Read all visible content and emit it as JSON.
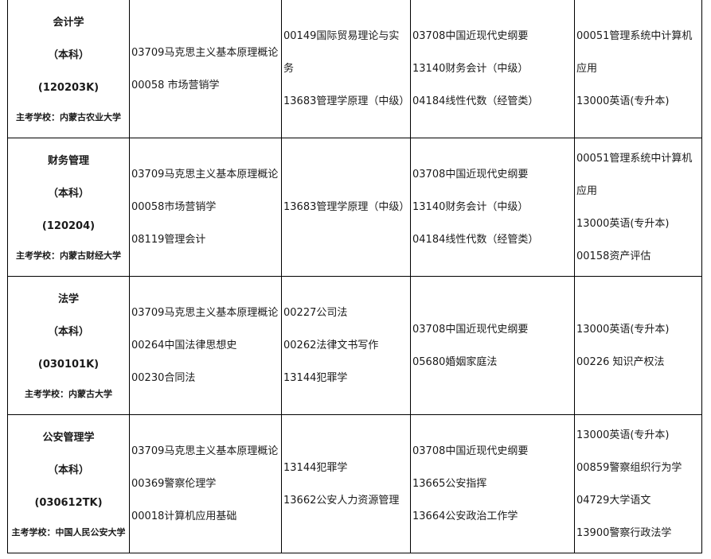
{
  "rows": [
    {
      "major": {
        "name": "会计学",
        "level": "（本科）",
        "code": "(120203K)",
        "school": "主考学校：内蒙古农业大学"
      },
      "col2": [
        "03709马克思主义基本原理概论",
        "00058 市场营销学"
      ],
      "col3": [
        "00149国际贸易理论与实务",
        "13683管理学原理（中级）"
      ],
      "col4": [
        "03708中国近现代史纲要",
        "13140财务会计（中级）",
        "04184线性代数（经管类）"
      ],
      "col5": [
        "00051管理系统中计算机应用",
        "13000英语(专升本)"
      ]
    },
    {
      "major": {
        "name": "财务管理",
        "level": "（本科）",
        "code": "(120204)",
        "school": "主考学校：内蒙古财经大学"
      },
      "col2": [
        "03709马克思主义基本原理概论",
        "00058市场营销学",
        "08119管理会计"
      ],
      "col3": [
        "13683管理学原理（中级）"
      ],
      "col4": [
        "03708中国近现代史纲要",
        "13140财务会计（中级）",
        "04184线性代数（经管类）"
      ],
      "col5": [
        "00051管理系统中计算机应用",
        "13000英语(专升本)",
        "00158资产评估"
      ]
    },
    {
      "major": {
        "name": "法学",
        "level": "（本科）",
        "code": "(030101K)",
        "school": "主考学校：内蒙古大学"
      },
      "col2": [
        "03709马克思主义基本原理概论",
        "00264中国法律思想史",
        "00230合同法"
      ],
      "col3": [
        "00227公司法",
        "00262法律文书写作",
        "13144犯罪学"
      ],
      "col4": [
        "03708中国近现代史纲要",
        "05680婚姻家庭法"
      ],
      "col5": [
        "13000英语(专升本)",
        "00226 知识产权法"
      ]
    },
    {
      "major": {
        "name": "公安管理学",
        "level": "（本科）",
        "code": "(030612TK)",
        "school": "主考学校：中国人民公安大学"
      },
      "col2": [
        "03709马克思主义基本原理概论",
        "00369警察伦理学",
        "00018计算机应用基础"
      ],
      "col3": [
        "13144犯罪学",
        "13662公安人力资源管理"
      ],
      "col4": [
        "03708中国近现代史纲要",
        "13665公安指挥",
        "13664公安政治工作学"
      ],
      "col5": [
        "13000英语(专升本)",
        "00859警察组织行为学",
        "04729大学语文",
        "13900警察行政法学"
      ]
    }
  ]
}
